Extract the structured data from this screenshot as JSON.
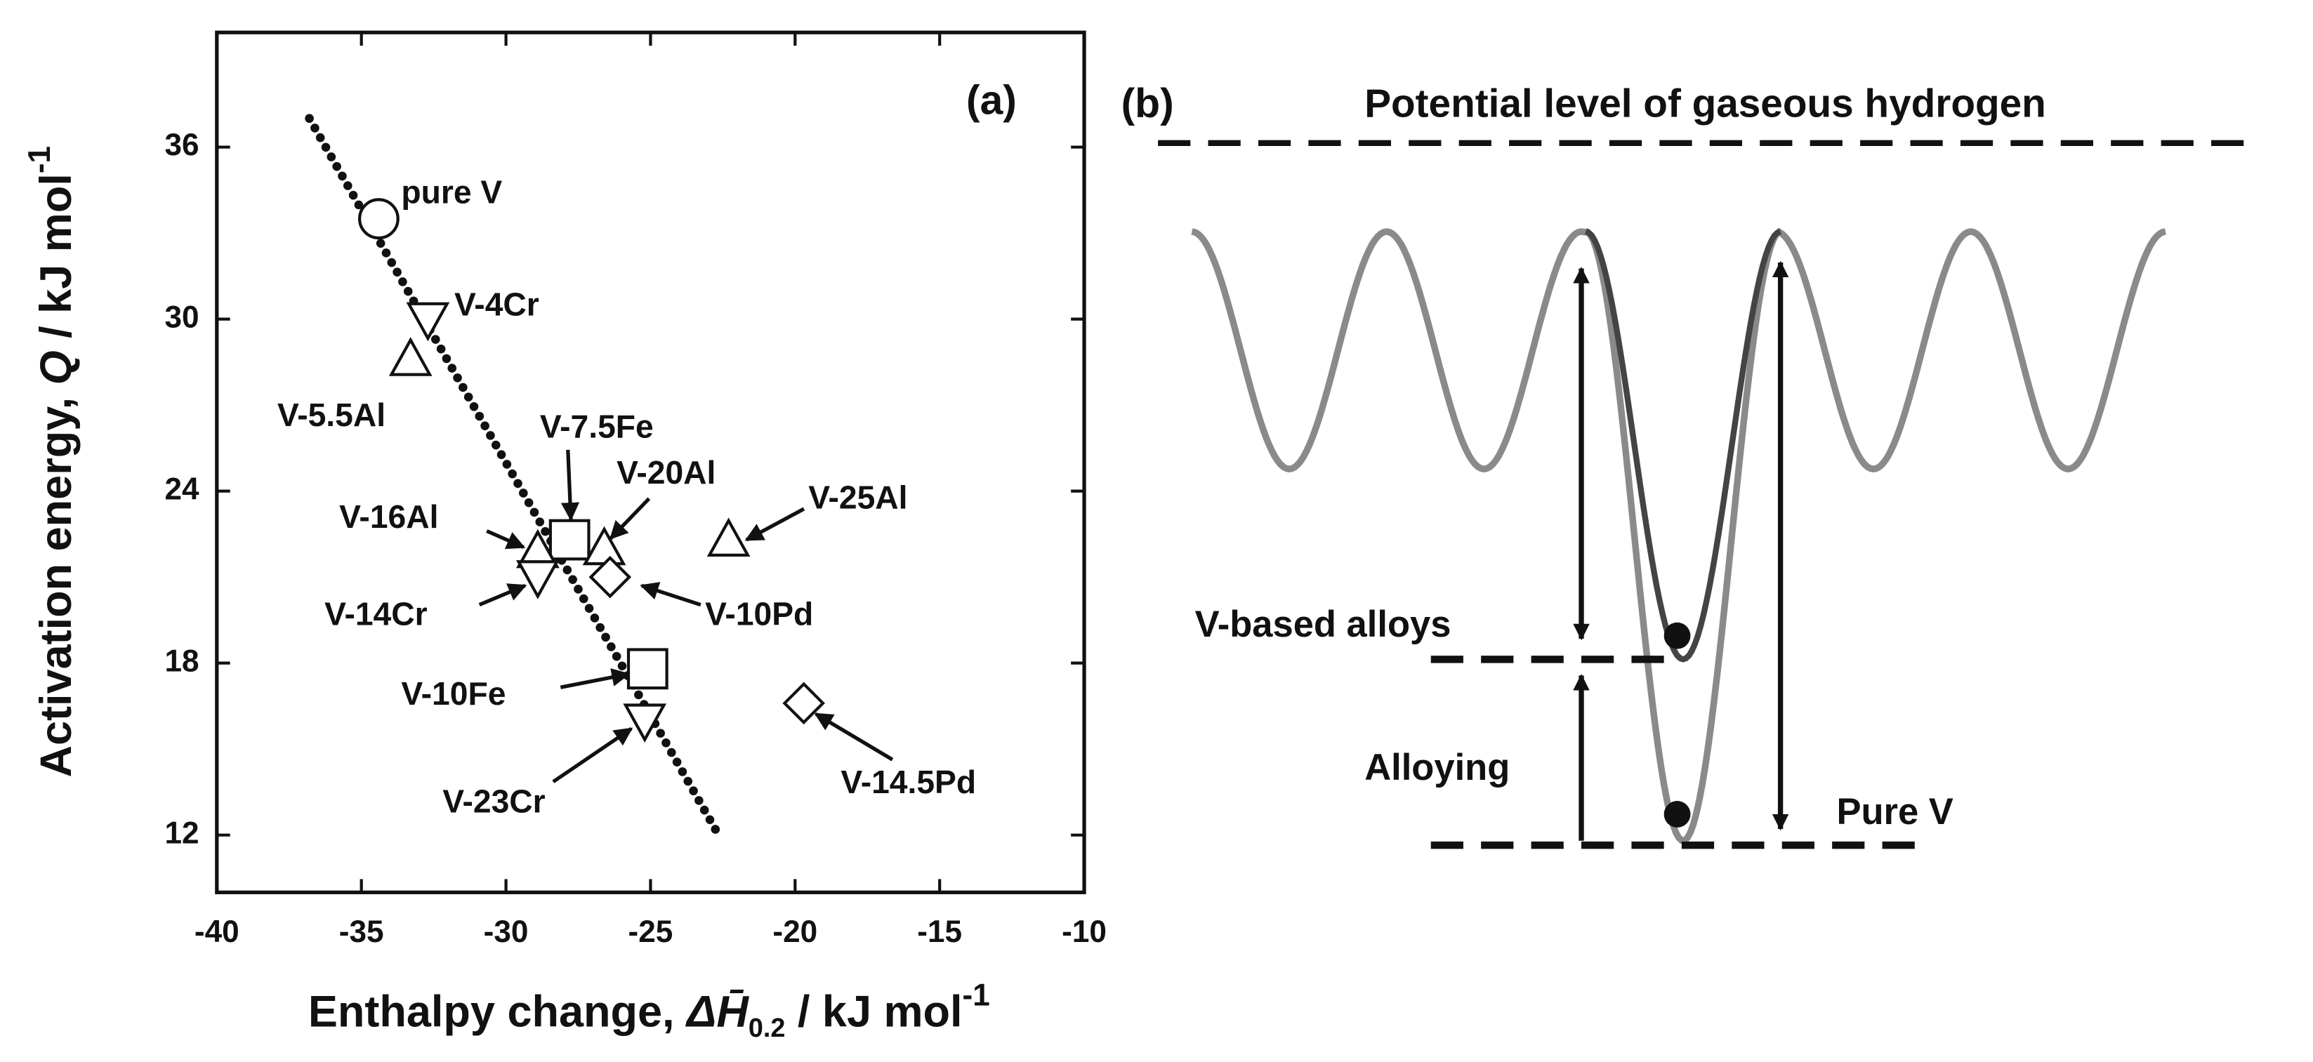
{
  "chart_data": {
    "type": "scatter",
    "panel_label": "(a)",
    "ylabel": [
      {
        "text": "Activation energy, "
      },
      {
        "text": "Q",
        "italic": true
      },
      {
        "text": " / kJ mol"
      },
      {
        "text": "-1",
        "sup": true
      }
    ],
    "xlabel": [
      {
        "text": "Enthalpy change, "
      },
      {
        "text": "ΔH̄",
        "italic": true
      },
      {
        "text": "0.2",
        "sub": true
      },
      {
        "text": " / kJ mol"
      },
      {
        "text": "-1",
        "sup": true
      }
    ],
    "xlim": [
      -40,
      -10
    ],
    "xticks": [
      -40,
      -35,
      -30,
      -25,
      -20,
      -15,
      -10
    ],
    "ylim": [
      10,
      40
    ],
    "yticks": [
      12,
      18,
      24,
      30,
      36
    ],
    "labels": [
      "pure V",
      "V-4Cr",
      "V-5.5Al",
      "V-7.5Fe",
      "V-16Al",
      "V-14Cr",
      "V-20Al",
      "V-25Al",
      "V-10Pd",
      "V-10Fe",
      "V-23Cr",
      "V-14.5Pd"
    ],
    "markers": [
      "circle",
      "triangle-down",
      "triangle-up",
      "square",
      "triangle-up",
      "triangle-down",
      "triangle-up",
      "triangle-up",
      "diamond",
      "square",
      "triangle-down",
      "diamond"
    ],
    "x": [
      -34.4,
      -32.7,
      -33.3,
      -27.8,
      -28.9,
      -28.9,
      -26.6,
      -22.3,
      -26.4,
      -25.1,
      -25.2,
      -19.7
    ],
    "values": [
      33.5,
      30.0,
      28.6,
      22.3,
      21.9,
      21.0,
      22.0,
      22.3,
      21.0,
      17.8,
      16.0,
      16.6
    ],
    "fit": {
      "x": [
        -36.8,
        -22.7
      ],
      "values": [
        37.0,
        12.1
      ]
    }
  },
  "panel_b": {
    "label": "(b)",
    "gas_level": "Potential level of gaseous hydrogen",
    "alloy_level": "V-based alloys",
    "alloying": "Alloying",
    "pure_level": "Pure V"
  }
}
